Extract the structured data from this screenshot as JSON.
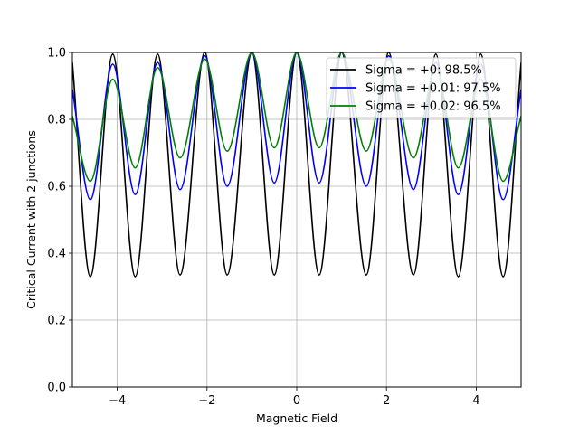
{
  "chart_data": {
    "type": "line",
    "title": "",
    "xlabel": "Magnetic Field",
    "ylabel": "Critical Current with 2 junctions",
    "xlim": [
      -5,
      5
    ],
    "ylim": [
      0,
      1
    ],
    "xticks": [
      -4,
      -2,
      0,
      2,
      4
    ],
    "xtick_labels": [
      "−4",
      "−2",
      "0",
      "2",
      "4"
    ],
    "yticks": [
      0.0,
      0.2,
      0.4,
      0.6,
      0.8,
      1.0
    ],
    "ytick_labels": [
      "0.0",
      "0.2",
      "0.4",
      "0.6",
      "0.8",
      "1.0"
    ],
    "grid": true,
    "legend_position": "top-right",
    "series": [
      {
        "name": "Sigma = +0: 98.5%",
        "color": "#000000",
        "x": [
          -5.0,
          -4.6,
          -4.1,
          -3.6,
          -3.1,
          -2.6,
          -2.05,
          -1.55,
          -1.0,
          -0.5,
          0.0,
          0.5,
          1.0,
          1.55,
          2.05,
          2.6,
          3.1,
          3.6,
          4.1,
          4.6,
          5.0
        ],
        "y": [
          0.97,
          0.33,
          0.995,
          0.33,
          0.995,
          0.335,
          1.0,
          0.335,
          1.0,
          0.335,
          1.0,
          0.335,
          1.0,
          0.335,
          1.0,
          0.335,
          0.995,
          0.33,
          0.995,
          0.33,
          0.97
        ]
      },
      {
        "name": "Sigma = +0.01: 97.5%",
        "color": "#0000ff",
        "x": [
          -5.0,
          -4.6,
          -4.1,
          -3.6,
          -3.1,
          -2.6,
          -2.05,
          -1.55,
          -1.0,
          -0.5,
          0.0,
          0.5,
          1.0,
          1.55,
          2.05,
          2.6,
          3.1,
          3.6,
          4.1,
          4.6,
          5.0
        ],
        "y": [
          0.89,
          0.56,
          0.965,
          0.575,
          0.97,
          0.59,
          0.99,
          0.6,
          1.0,
          0.61,
          1.0,
          0.61,
          1.0,
          0.6,
          0.99,
          0.59,
          0.97,
          0.575,
          0.965,
          0.56,
          0.89
        ]
      },
      {
        "name": "Sigma = +0.02: 96.5%",
        "color": "#008000",
        "x": [
          -5.0,
          -4.6,
          -4.1,
          -3.6,
          -3.1,
          -2.6,
          -2.05,
          -1.55,
          -1.0,
          -0.5,
          0.0,
          0.5,
          1.0,
          1.55,
          2.05,
          2.6,
          3.1,
          3.6,
          4.1,
          4.6,
          5.0
        ],
        "y": [
          0.81,
          0.615,
          0.92,
          0.655,
          0.955,
          0.685,
          0.98,
          0.705,
          1.0,
          0.715,
          1.0,
          0.715,
          1.0,
          0.705,
          0.98,
          0.685,
          0.955,
          0.655,
          0.92,
          0.615,
          0.81
        ]
      }
    ]
  }
}
